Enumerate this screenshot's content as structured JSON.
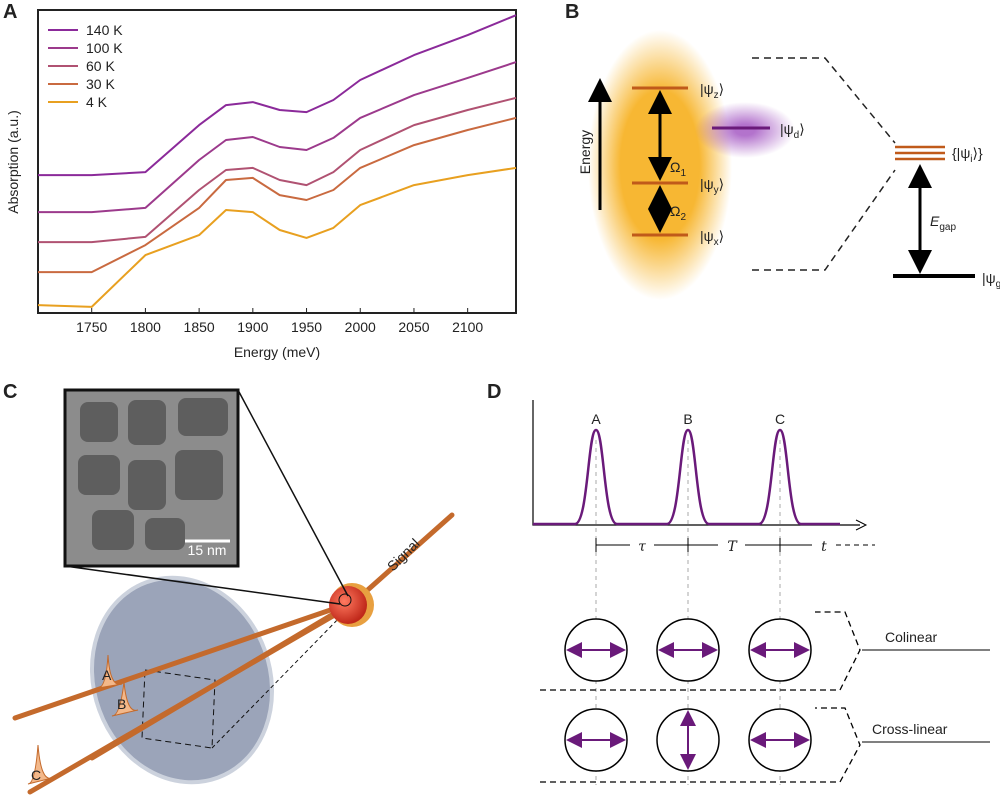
{
  "chart_data": {
    "type": "line",
    "panel_label": "A",
    "xlabel": "Energy (meV)",
    "ylabel": "Absorption (a.u.)",
    "x": [
      1700,
      1750,
      1800,
      1850,
      1875,
      1900,
      1925,
      1950,
      1975,
      2000,
      2050,
      2100,
      2145
    ],
    "xlim": [
      1700,
      2145
    ],
    "xticks": [
      1750,
      1800,
      1850,
      1900,
      1950,
      2000,
      2050,
      2100
    ],
    "ylim": [
      0,
      10
    ],
    "legend": "upper-left",
    "series": [
      {
        "name": "140 K",
        "color": "#8b2a9a",
        "values": [
          4.55,
          4.55,
          4.65,
          6.2,
          6.86,
          6.96,
          6.7,
          6.63,
          7.03,
          7.69,
          8.51,
          9.17,
          9.83
        ]
      },
      {
        "name": "100 K",
        "color": "#9c3a8c",
        "values": [
          3.33,
          3.33,
          3.47,
          5.05,
          5.71,
          5.81,
          5.48,
          5.38,
          5.78,
          6.44,
          7.19,
          7.76,
          8.28
        ]
      },
      {
        "name": "60 K",
        "color": "#b05272",
        "values": [
          2.34,
          2.34,
          2.51,
          4.06,
          4.72,
          4.79,
          4.39,
          4.22,
          4.65,
          5.38,
          6.2,
          6.7,
          7.1
        ]
      },
      {
        "name": "30 K",
        "color": "#c96a40",
        "values": [
          1.35,
          1.35,
          2.24,
          3.47,
          4.39,
          4.46,
          3.89,
          3.73,
          4.06,
          4.79,
          5.54,
          6.04,
          6.44
        ]
      },
      {
        "name": "4 K",
        "color": "#e8a020",
        "values": [
          0.26,
          0.2,
          1.91,
          2.57,
          3.4,
          3.33,
          2.74,
          2.48,
          2.81,
          3.56,
          4.22,
          4.55,
          4.79
        ]
      }
    ]
  },
  "panel_b": {
    "label": "B",
    "energy": "Energy",
    "psi_z": {
      "base": "|ψ",
      "sub": "z",
      "end": "⟩"
    },
    "psi_y": {
      "base": "|ψ",
      "sub": "y",
      "end": "⟩"
    },
    "psi_x": {
      "base": "|ψ",
      "sub": "x",
      "end": "⟩"
    },
    "psi_d": {
      "base": "|ψ",
      "sub": "d",
      "end": "⟩"
    },
    "omega_1": {
      "base": "Ω",
      "sub": "1"
    },
    "omega_2": {
      "base": "Ω",
      "sub": "2"
    },
    "manifold": {
      "base": "{|ψ",
      "sub": "i",
      "end": "⟩}"
    },
    "gap": {
      "base": "E",
      "sub": "gap"
    },
    "ground": {
      "base": "|ψ",
      "sub": "g",
      "end": "⟩"
    }
  },
  "panel_c": {
    "label": "C",
    "scale_bar": "15 nm",
    "signal": "Signal",
    "pulses": [
      "A",
      "B",
      "C"
    ]
  },
  "panel_d": {
    "label": "D",
    "pulses": [
      "A",
      "B",
      "C"
    ],
    "delays": [
      "τ",
      "T",
      "t"
    ],
    "schemes": [
      "Colinear",
      "Cross-linear"
    ]
  }
}
